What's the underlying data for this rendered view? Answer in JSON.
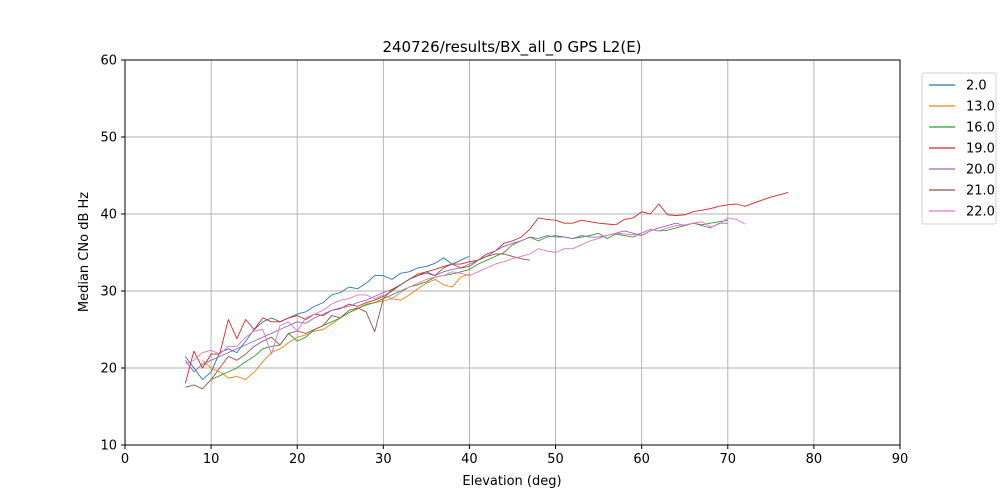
{
  "chart_data": {
    "type": "line",
    "title": "240726/results/BX_all_0 GPS L2(E)",
    "xlabel": "Elevation (deg)",
    "ylabel": "Median CNo dB Hz",
    "xlim": [
      0,
      90
    ],
    "ylim": [
      10,
      60
    ],
    "xticks": [
      0,
      10,
      20,
      30,
      40,
      50,
      60,
      70,
      80,
      90
    ],
    "yticks": [
      10,
      20,
      30,
      40,
      50,
      60
    ],
    "grid": true,
    "legend_position": "outside-top-right",
    "series": [
      {
        "name": "2.0",
        "color": "#1f77b4",
        "x": [
          7,
          8,
          9,
          10,
          11,
          12,
          13,
          14,
          15,
          16,
          17,
          18,
          19,
          20,
          21,
          22,
          23,
          24,
          25,
          26,
          27,
          28,
          29,
          30,
          31,
          32,
          33,
          34,
          35,
          36,
          37,
          38,
          39,
          40
        ],
        "y": [
          21.5,
          20.0,
          18.5,
          19.5,
          22.0,
          22.5,
          22.0,
          23.5,
          25.0,
          26.0,
          26.5,
          26.0,
          26.5,
          27.0,
          27.3,
          28.0,
          28.5,
          29.5,
          29.8,
          30.5,
          30.3,
          31.0,
          32.0,
          32.0,
          31.5,
          32.3,
          32.5,
          33.0,
          33.2,
          33.6,
          34.3,
          33.5,
          34.0,
          34.5
        ]
      },
      {
        "name": "13.0",
        "color": "#ff7f0e",
        "x": [
          9,
          10,
          11,
          12,
          13,
          14,
          15,
          16,
          17,
          18,
          19,
          20,
          21,
          22,
          23,
          24,
          25,
          26,
          27,
          28,
          29,
          30,
          31,
          32,
          33,
          34,
          35,
          36,
          37,
          38,
          39,
          40
        ],
        "y": [
          21.0,
          20.0,
          19.5,
          18.7,
          18.9,
          18.5,
          19.5,
          20.8,
          22.0,
          22.5,
          23.3,
          24.0,
          24.3,
          24.8,
          25.0,
          25.7,
          26.5,
          27.2,
          27.7,
          28.3,
          28.5,
          28.7,
          29.0,
          28.8,
          29.5,
          30.3,
          31.0,
          31.5,
          30.8,
          30.5,
          31.8,
          32.2
        ]
      },
      {
        "name": "16.0",
        "color": "#2ca02c",
        "x": [
          10,
          11,
          12,
          13,
          14,
          15,
          16,
          17,
          18,
          19,
          20,
          21,
          22,
          23,
          24,
          25,
          26,
          27,
          28,
          29,
          30,
          31,
          32,
          33,
          34,
          35,
          36,
          37,
          38,
          39,
          40,
          41,
          42,
          43,
          44,
          45,
          46,
          47,
          48,
          49,
          50,
          51,
          52,
          53,
          54,
          55,
          56,
          57,
          58,
          59,
          60,
          61,
          62,
          63,
          64,
          65,
          66,
          67,
          68,
          69,
          70
        ],
        "y": [
          18.5,
          19.0,
          19.5,
          20.0,
          20.8,
          21.5,
          22.5,
          22.8,
          23.0,
          24.5,
          23.5,
          24.0,
          25.0,
          25.5,
          26.0,
          26.5,
          27.2,
          27.7,
          28.2,
          28.5,
          29.0,
          29.5,
          30.0,
          30.5,
          30.8,
          31.2,
          31.8,
          32.0,
          32.2,
          32.5,
          32.8,
          33.5,
          34.0,
          34.5,
          35.0,
          36.0,
          36.5,
          37.0,
          36.5,
          37.0,
          37.2,
          37.0,
          36.8,
          37.0,
          37.2,
          37.5,
          36.8,
          37.4,
          37.2,
          37.0,
          37.5,
          38.0,
          37.8,
          37.9,
          38.2,
          38.5,
          38.8,
          38.6,
          38.8,
          39.0,
          39.2
        ]
      },
      {
        "name": "19.0",
        "color": "#d62728",
        "x": [
          7,
          8,
          9,
          10,
          11,
          12,
          13,
          14,
          15,
          16,
          17,
          18,
          19,
          20,
          21,
          22,
          23,
          24,
          25,
          26,
          27,
          28,
          29,
          30,
          31,
          32,
          33,
          34,
          35,
          36,
          37,
          38,
          39,
          40,
          41,
          42,
          43,
          44,
          45,
          46,
          47,
          48,
          49,
          50,
          51,
          52,
          53,
          54,
          55,
          56,
          57,
          58,
          59,
          60,
          61,
          62,
          63,
          64,
          65,
          66,
          67,
          68,
          69,
          70,
          71,
          72,
          73,
          74,
          75,
          76,
          77
        ],
        "y": [
          18.0,
          22.2,
          20.0,
          21.8,
          21.8,
          26.3,
          23.8,
          26.3,
          25.0,
          26.5,
          26.0,
          26.0,
          26.5,
          26.8,
          26.3,
          27.0,
          26.8,
          27.5,
          27.7,
          28.3,
          28.0,
          28.5,
          28.8,
          29.3,
          30.0,
          30.8,
          31.5,
          32.2,
          32.5,
          32.8,
          33.2,
          33.5,
          33.5,
          33.8,
          34.0,
          34.8,
          35.2,
          36.2,
          36.5,
          37.0,
          38.0,
          39.5,
          39.3,
          39.2,
          38.8,
          38.8,
          39.2,
          39.0,
          38.8,
          38.7,
          38.6,
          39.3,
          39.5,
          40.3,
          40.0,
          41.3,
          39.9,
          39.8,
          39.9,
          40.3,
          40.5,
          40.7,
          41.0,
          41.2,
          41.3,
          41.0,
          41.4,
          41.8,
          42.2,
          42.5,
          42.8
        ]
      },
      {
        "name": "20.0",
        "color": "#9467bd",
        "x": [
          7,
          8,
          9,
          10,
          11,
          12,
          13,
          14,
          15,
          16,
          17,
          18,
          19,
          20,
          21,
          22,
          23,
          24,
          25,
          26,
          27,
          28,
          29,
          30,
          31,
          32,
          33,
          34,
          35,
          36,
          37,
          38,
          39,
          40,
          41,
          42,
          43,
          44,
          45,
          46,
          47,
          48,
          49,
          50,
          51,
          52,
          53,
          54,
          55,
          56,
          57,
          58,
          59,
          60,
          61,
          62,
          63,
          64,
          65,
          66,
          67,
          68,
          69,
          70
        ],
        "y": [
          21.0,
          19.5,
          20.5,
          21.0,
          21.5,
          22.0,
          22.5,
          23.0,
          23.5,
          24.0,
          24.5,
          25.0,
          25.5,
          26.0,
          25.8,
          26.5,
          27.0,
          27.5,
          27.8,
          28.0,
          28.5,
          28.8,
          29.3,
          29.8,
          30.2,
          30.8,
          31.5,
          32.0,
          32.3,
          32.0,
          32.5,
          32.8,
          33.0,
          33.5,
          34.0,
          34.5,
          35.2,
          35.8,
          36.2,
          36.5,
          37.0,
          36.8,
          37.2,
          37.0,
          37.0,
          36.8,
          37.2,
          37.0,
          37.0,
          37.2,
          37.5,
          37.8,
          37.5,
          37.2,
          37.8,
          38.2,
          38.5,
          38.8,
          38.5,
          38.8,
          38.5,
          38.2,
          38.8,
          38.8
        ]
      },
      {
        "name": "21.0",
        "color": "#8c564b",
        "x": [
          7,
          8,
          9,
          10,
          11,
          12,
          13,
          14,
          15,
          16,
          17,
          18,
          19,
          20,
          21,
          22,
          23,
          24,
          25,
          26,
          27,
          28,
          29,
          30,
          31,
          32,
          33,
          34,
          35,
          36,
          37,
          38,
          39,
          40,
          41,
          42,
          43,
          44,
          45,
          46,
          47
        ],
        "y": [
          17.5,
          17.8,
          17.3,
          18.5,
          20.0,
          21.5,
          21.0,
          21.8,
          22.8,
          23.5,
          24.0,
          23.0,
          24.5,
          24.8,
          24.5,
          25.0,
          25.5,
          26.8,
          26.5,
          27.5,
          27.8,
          27.3,
          24.7,
          29.0,
          30.2,
          30.8,
          31.5,
          32.0,
          32.5,
          32.0,
          33.0,
          33.5,
          33.0,
          33.2,
          34.0,
          34.5,
          34.8,
          34.8,
          34.5,
          34.2,
          34.0
        ]
      },
      {
        "name": "22.0",
        "color": "#e377c2",
        "x": [
          7,
          8,
          9,
          10,
          11,
          12,
          13,
          14,
          15,
          16,
          17,
          18,
          19,
          20,
          21,
          22,
          23,
          24,
          25,
          26,
          27,
          28,
          29,
          30,
          31,
          32,
          33,
          34,
          35,
          36,
          37,
          38,
          39,
          40,
          41,
          42,
          43,
          44,
          45,
          46,
          47,
          48,
          49,
          50,
          51,
          52,
          53,
          54,
          55,
          56,
          57,
          58,
          59,
          60,
          61,
          62,
          63,
          64,
          65,
          66,
          67,
          68,
          69,
          70,
          71,
          72
        ],
        "y": [
          20.5,
          21.0,
          22.0,
          22.3,
          21.8,
          22.8,
          22.8,
          24.0,
          24.8,
          25.0,
          21.8,
          25.5,
          26.0,
          24.8,
          26.5,
          27.0,
          27.5,
          28.3,
          28.8,
          29.0,
          29.5,
          29.5,
          29.0,
          29.5,
          29.0,
          29.8,
          30.5,
          31.0,
          31.5,
          31.8,
          32.0,
          32.5,
          32.3,
          32.0,
          32.5,
          33.0,
          33.5,
          33.8,
          34.2,
          34.5,
          34.8,
          35.5,
          35.2,
          35.0,
          35.5,
          35.5,
          36.0,
          36.5,
          36.8,
          37.2,
          37.5,
          37.4,
          37.3,
          37.5,
          38.0,
          37.8,
          38.2,
          38.5,
          38.6,
          38.8,
          39.0,
          38.3,
          38.7,
          39.5,
          39.3,
          38.7
        ]
      }
    ]
  }
}
